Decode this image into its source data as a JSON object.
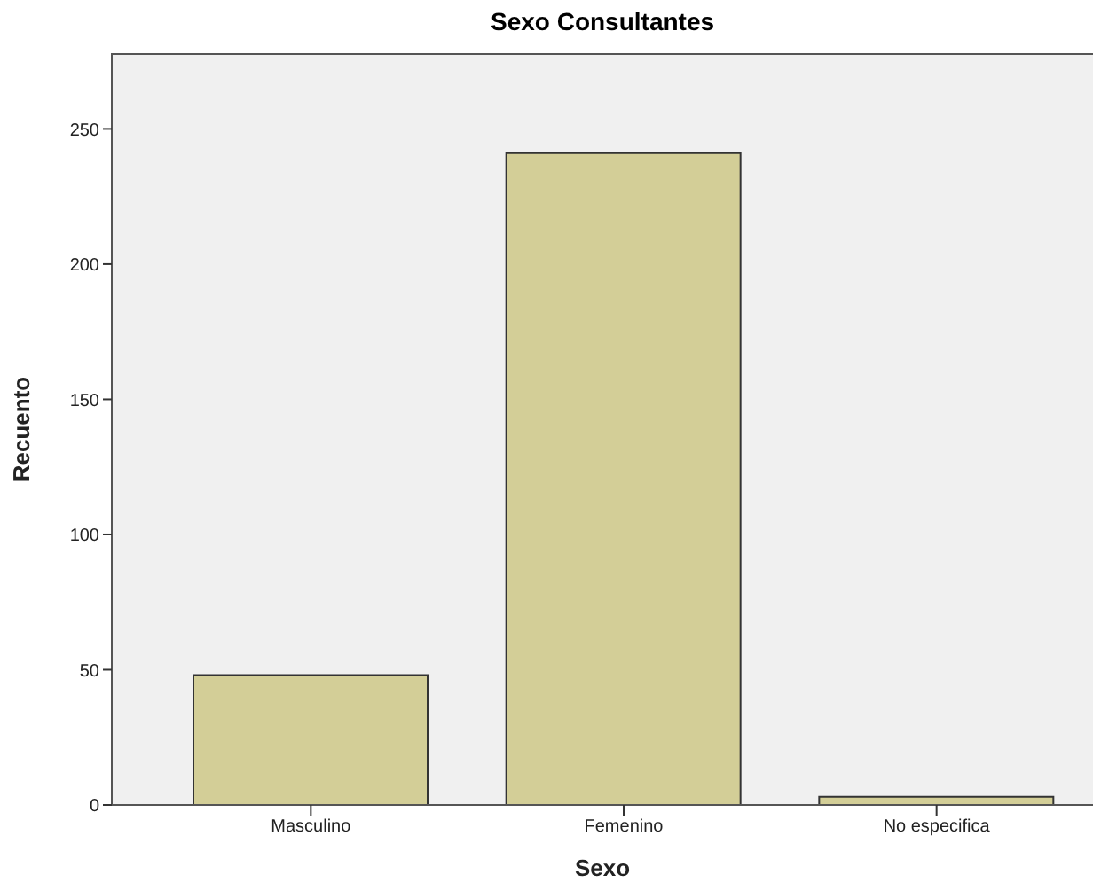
{
  "chart_data": {
    "type": "bar",
    "title": "Sexo Consultantes",
    "xlabel": "Sexo",
    "ylabel": "Recuento",
    "categories": [
      "Masculino",
      "Femenino",
      "No especifica"
    ],
    "values": [
      48,
      241,
      3
    ],
    "color": "#d3ce97",
    "ylim": [
      0,
      278
    ],
    "yticks": [
      0,
      50,
      100,
      150,
      200,
      250
    ]
  }
}
